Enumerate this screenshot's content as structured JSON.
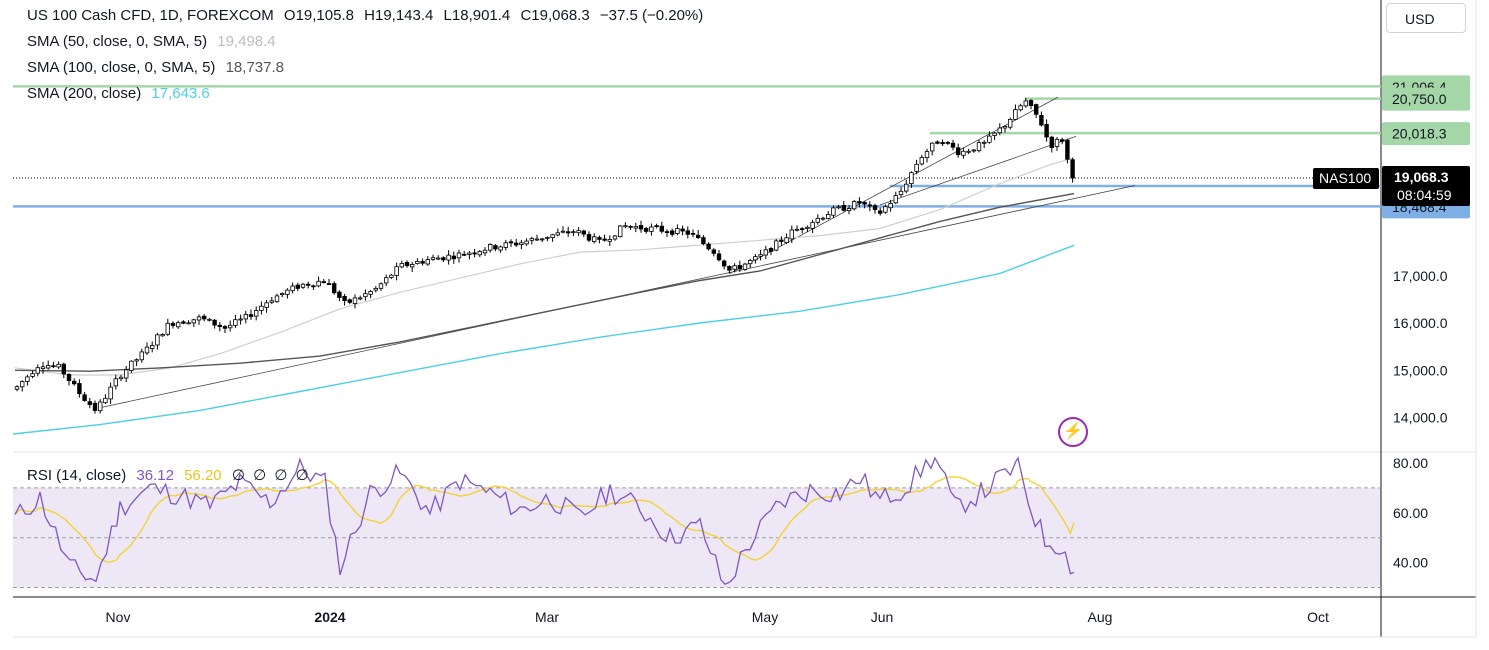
{
  "toolbar": {
    "currency": "USD"
  },
  "legend": {
    "symbol": "US 100 Cash CFD, 1D, FOREXCOM",
    "open": "O19,105.8",
    "high": "H19,143.4",
    "low": "L18,901.4",
    "close": "C19,068.3",
    "change": "−37.5 (−0.20%)",
    "sma50_label": "SMA (50, close, 0, SMA, 5)",
    "sma50_value": "19,498.4",
    "sma100_label": "SMA (100, close, 0, SMA, 5)",
    "sma100_value": "18,737.8",
    "sma200_label": "SMA (200, close)",
    "sma200_value": "17,643.6"
  },
  "rsi_legend": {
    "label": "RSI (14, close)",
    "rsi_value": "36.12",
    "ma_value": "56.20",
    "extras": [
      "∅",
      "∅",
      "∅",
      "∅"
    ]
  },
  "price_tags": {
    "symbol_tag": "NAS100",
    "last_price": "19,068.3",
    "countdown": "08:04:59",
    "levels": [
      {
        "label": "21,006.4",
        "value": 21006.4,
        "color": "#a5d6a7"
      },
      {
        "label": "20,750.0",
        "value": 20750.0,
        "color": "#a5d6a7"
      },
      {
        "label": "20,018.3",
        "value": 20018.3,
        "color": "#a5d6a7"
      },
      {
        "label": "18,910.0",
        "value": 18910.0,
        "color": "#90caf9"
      },
      {
        "label": "18,468.4",
        "value": 18468.4,
        "color": "#90caf9"
      }
    ]
  },
  "colors": {
    "candle_up": "#ffffff",
    "candle_down": "#000000",
    "sma50": "#cfcfcf",
    "sma100": "#555555",
    "sma200": "#4dd0e1",
    "rsi": "#7e57c2",
    "rsi_ma": "#f2d335",
    "rsi_band": "#ede7f6",
    "support": "#7eb0e6",
    "resistance": "#a5d6a7"
  },
  "chart_data": [
    {
      "type": "candlestick",
      "title": "US 100 Cash CFD, 1D, FOREXCOM",
      "x_ticks": [
        "Nov",
        "2024",
        "Mar",
        "May",
        "Jun",
        "Aug",
        "Oct"
      ],
      "y_ticks": [
        14000,
        15000,
        16000,
        17000
      ],
      "y_tick_labels": [
        "14,000.0",
        "15,000.0",
        "16,000.0",
        "17,000.0"
      ],
      "ylim": [
        13600,
        22500
      ],
      "horizontal_levels": [
        21006.4,
        20750.0,
        20018.3,
        18910.0,
        18468.4
      ],
      "last_price": 19068.3,
      "series": [
        {
          "name": "US 100 Cash CFD",
          "x": [
            "Oct 2023",
            "Nov 2023",
            "Dec 2023",
            "Jan 2024",
            "Feb 2024",
            "Mar 2024",
            "Apr 2024",
            "May 2024",
            "Jun 2024",
            "Jul 2024"
          ],
          "values": [
            14800,
            14150,
            15200,
            16950,
            17050,
            18200,
            17150,
            18550,
            20020,
            19068
          ]
        },
        {
          "name": "SMA (50, close, 0, SMA, 5)",
          "value": 19498.4
        },
        {
          "name": "SMA (100, close, 0, SMA, 5)",
          "value": 18737.8
        },
        {
          "name": "SMA (200, close)",
          "value": 17643.6
        }
      ]
    },
    {
      "type": "line",
      "title": "RSI (14, close)",
      "y_ticks": [
        40,
        60,
        80
      ],
      "y_tick_labels": [
        "40.00",
        "60.00",
        "80.00"
      ],
      "bands": [
        30,
        50,
        70
      ],
      "ylim": [
        27,
        83
      ],
      "series": [
        {
          "name": "RSI",
          "value": 36.12,
          "x": [
            "Oct 2023",
            "Nov 2023",
            "Dec 2023",
            "Jan 2024",
            "Feb 2024",
            "Mar 2024",
            "Apr 2024",
            "May 2024",
            "Jun 2024",
            "Jul 2024"
          ],
          "values": [
            60,
            34,
            68,
            48,
            70,
            62,
            30,
            67,
            79,
            36
          ]
        },
        {
          "name": "RSI MA",
          "value": 56.2
        }
      ]
    }
  ]
}
